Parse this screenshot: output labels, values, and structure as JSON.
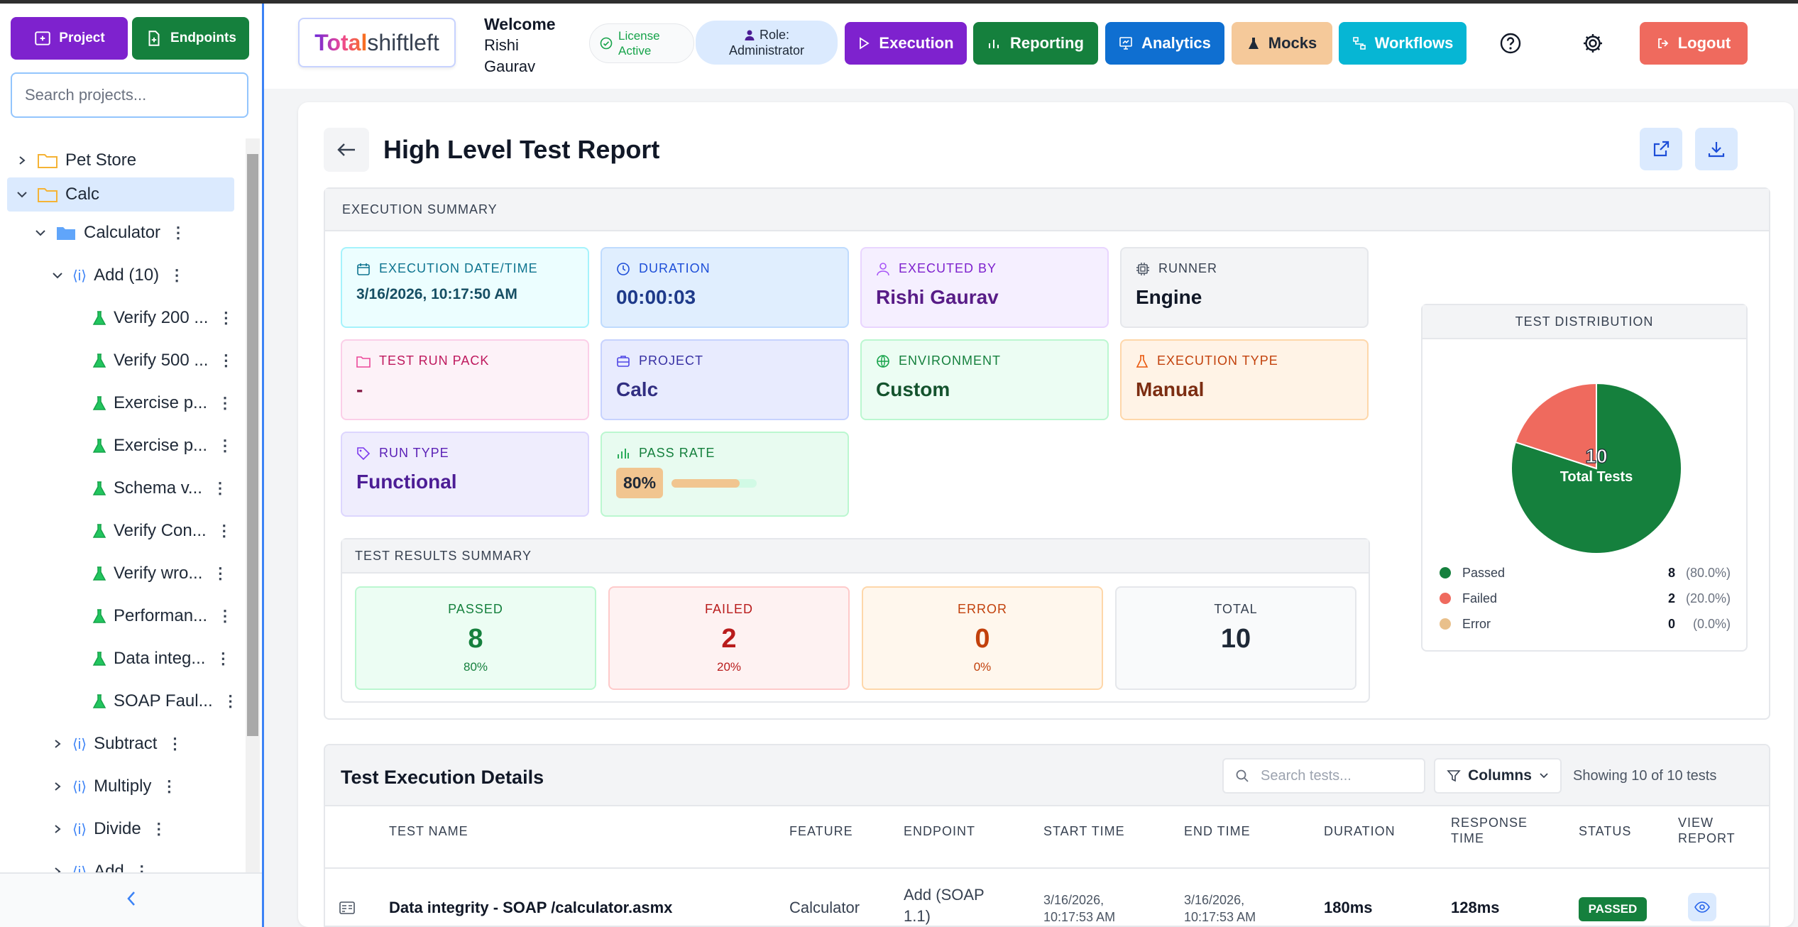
{
  "sidebar": {
    "project_btn": "Project",
    "endpoints_btn": "Endpoints",
    "search_placeholder": "Search projects...",
    "tree": [
      {
        "label": "Pet Store"
      },
      {
        "label": "Calc"
      },
      {
        "label": "Calculator"
      },
      {
        "label": "Add (10)"
      },
      {
        "label": "Verify 200 ..."
      },
      {
        "label": "Verify 500 ..."
      },
      {
        "label": "Exercise p..."
      },
      {
        "label": "Exercise p..."
      },
      {
        "label": "Schema v..."
      },
      {
        "label": "Verify Con..."
      },
      {
        "label": "Verify wro..."
      },
      {
        "label": "Performan..."
      },
      {
        "label": "Data integ..."
      },
      {
        "label": "SOAP Faul..."
      },
      {
        "label": "Subtract"
      },
      {
        "label": "Multiply"
      },
      {
        "label": "Divide"
      },
      {
        "label": "Add"
      }
    ]
  },
  "header": {
    "logo_part1": "Total",
    "logo_part2": "shiftleft",
    "welcome": "Welcome",
    "user_first": "Rishi",
    "user_last": "Gaurav",
    "license_line1": "License",
    "license_line2": "Active",
    "role_line1": "Role:",
    "role_line2": "Administrator",
    "nav": {
      "execution": "Execution",
      "reporting": "Reporting",
      "analytics": "Analytics",
      "mocks": "Mocks",
      "workflows": "Workflows",
      "logout": "Logout"
    },
    "colors": {
      "execution": "#7e22ce",
      "reporting": "#15803d",
      "analytics": "#0f6fd1",
      "mocks": "#f5c99a",
      "workflows": "#06b6d4",
      "logout": "#ef6a5e"
    }
  },
  "report": {
    "title": "High Level Test Report",
    "summary_heading": "EXECUTION SUMMARY",
    "tiles": {
      "exec_date": {
        "label": "EXECUTION DATE/TIME",
        "value": "3/16/2026, 10:17:50 AM"
      },
      "duration": {
        "label": "DURATION",
        "value": "00:00:03"
      },
      "executed_by": {
        "label": "EXECUTED BY",
        "value": "Rishi Gaurav"
      },
      "runner": {
        "label": "RUNNER",
        "value": "Engine"
      },
      "test_run_pack": {
        "label": "TEST RUN PACK",
        "value": "-"
      },
      "project": {
        "label": "PROJECT",
        "value": "Calc"
      },
      "environment": {
        "label": "ENVIRONMENT",
        "value": "Custom"
      },
      "execution_type": {
        "label": "EXECUTION TYPE",
        "value": "Manual"
      },
      "run_type": {
        "label": "RUN TYPE",
        "value": "Functional"
      },
      "pass_rate": {
        "label": "PASS RATE",
        "value": "80%",
        "fraction": 0.8
      }
    },
    "results_heading": "TEST RESULTS SUMMARY",
    "results": {
      "passed": {
        "label": "PASSED",
        "value": "8",
        "pct": "80%"
      },
      "failed": {
        "label": "FAILED",
        "value": "2",
        "pct": "20%"
      },
      "error": {
        "label": "ERROR",
        "value": "0",
        "pct": "0%"
      },
      "total": {
        "label": "TOTAL",
        "value": "10"
      }
    }
  },
  "distribution": {
    "heading": "TEST DISTRIBUTION",
    "center_value": "10",
    "center_label": "Total Tests",
    "legend": [
      {
        "name": "Passed",
        "count": "8",
        "pct": "(80.0%)",
        "color": "#15803d"
      },
      {
        "name": "Failed",
        "count": "2",
        "pct": "(20.0%)",
        "color": "#ef6a5e"
      },
      {
        "name": "Error",
        "count": "0",
        "pct": "(0.0%)",
        "color": "#e9c08b"
      }
    ]
  },
  "chart_data": {
    "type": "pie",
    "title": "TEST DISTRIBUTION",
    "categories": [
      "Passed",
      "Failed",
      "Error"
    ],
    "values": [
      8,
      2,
      0
    ],
    "colors": [
      "#15803d",
      "#ef6a5e",
      "#e9c08b"
    ]
  },
  "details": {
    "title": "Test Execution Details",
    "search_placeholder": "Search tests...",
    "columns_btn": "Columns",
    "showing": "Showing 10 of 10 tests",
    "headers": {
      "test_name": "TEST NAME",
      "feature": "FEATURE",
      "endpoint": "ENDPOINT",
      "start_time": "START TIME",
      "end_time": "END TIME",
      "duration": "DURATION",
      "response_time_1": "RESPONSE",
      "response_time_2": "TIME",
      "status": "STATUS",
      "view_report_1": "VIEW",
      "view_report_2": "REPORT"
    },
    "rows": [
      {
        "test_name": "Data integrity - SOAP /calculator.asmx",
        "feature": "Calculator",
        "endpoint_1": "Add (SOAP",
        "endpoint_2": "1.1)",
        "start_1": "3/16/2026,",
        "start_2": "10:17:53 AM",
        "end_1": "3/16/2026,",
        "end_2": "10:17:53 AM",
        "duration": "180ms",
        "response_time": "128ms",
        "status": "PASSED"
      }
    ]
  }
}
